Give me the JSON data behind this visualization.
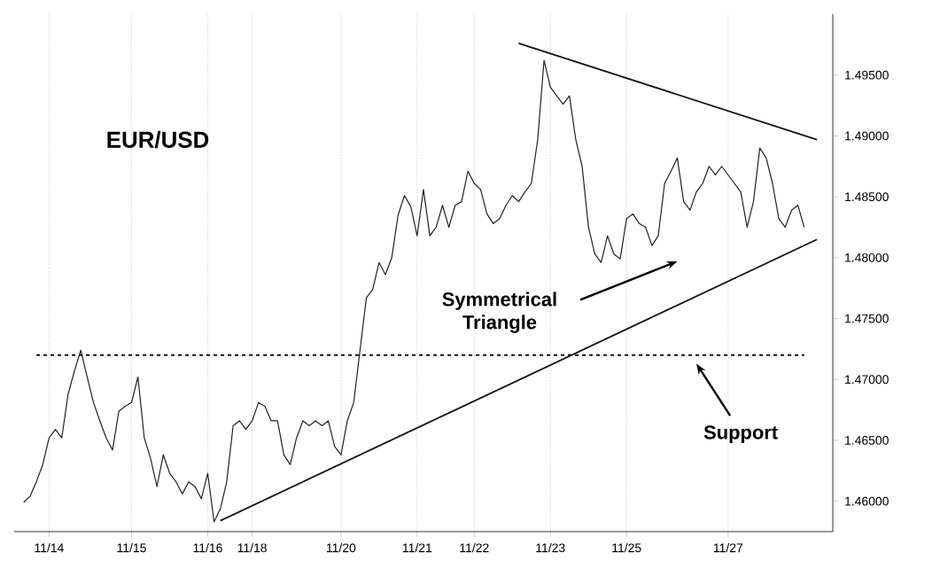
{
  "chart_data": {
    "type": "line",
    "title": "EUR/USD",
    "annotations": [
      "Symmetrical Triangle",
      "Support"
    ],
    "categories": [
      null,
      null,
      null,
      null,
      "11/14",
      null,
      null,
      null,
      null,
      null,
      null,
      null,
      null,
      null,
      null,
      null,
      null,
      "11/15",
      null,
      null,
      null,
      null,
      null,
      null,
      null,
      null,
      null,
      null,
      null,
      "11/16",
      null,
      null,
      null,
      null,
      null,
      null,
      "11/18",
      null,
      null,
      null,
      null,
      null,
      null,
      null,
      null,
      null,
      null,
      null,
      null,
      null,
      "11/20",
      null,
      null,
      null,
      null,
      null,
      null,
      null,
      null,
      null,
      null,
      null,
      "11/21",
      null,
      null,
      null,
      null,
      null,
      null,
      null,
      null,
      "11/22",
      null,
      null,
      null,
      null,
      null,
      null,
      null,
      null,
      null,
      null,
      null,
      "11/23",
      null,
      null,
      null,
      null,
      null,
      null,
      null,
      null,
      null,
      null,
      null,
      "11/25",
      null,
      null,
      null,
      null,
      null,
      null,
      null,
      null,
      null,
      null,
      null,
      null,
      null,
      null,
      null,
      "11/27",
      null,
      null,
      null,
      null,
      null,
      null,
      null,
      null,
      null,
      null,
      null,
      null,
      null,
      null
    ],
    "ylim": [
      1.4575,
      1.5
    ],
    "yticks": [
      {
        "value": 1.46,
        "label": "1.46000"
      },
      {
        "value": 1.465,
        "label": "1.46500"
      },
      {
        "value": 1.47,
        "label": "1.47000"
      },
      {
        "value": 1.475,
        "label": "1.47500"
      },
      {
        "value": 1.48,
        "label": "1.48000"
      },
      {
        "value": 1.485,
        "label": "1.48500"
      },
      {
        "value": 1.49,
        "label": "1.49000"
      },
      {
        "value": 1.495,
        "label": "1.49500"
      }
    ],
    "grid": "x",
    "marker": "none",
    "line_style": "solid",
    "series": [
      {
        "color": "#222222",
        "values": [
          1.4599,
          1.4604,
          1.4616,
          1.463,
          1.4652,
          1.4659,
          1.4652,
          1.4688,
          1.4707,
          1.4724,
          1.4702,
          1.4681,
          1.4666,
          1.4652,
          1.4642,
          1.4674,
          1.4678,
          1.4681,
          1.4702,
          1.4652,
          1.4635,
          1.4612,
          1.4638,
          1.4623,
          1.4616,
          1.4606,
          1.4616,
          1.4612,
          1.4602,
          1.4623,
          1.4583,
          1.4594,
          1.4616,
          1.4662,
          1.4666,
          1.4659,
          1.4666,
          1.4681,
          1.4678,
          1.4666,
          1.4666,
          1.4638,
          1.463,
          1.4652,
          1.4666,
          1.4662,
          1.4666,
          1.4662,
          1.4666,
          1.4645,
          1.4638,
          1.4666,
          1.4681,
          1.4724,
          1.4767,
          1.4774,
          1.4796,
          1.4786,
          1.48,
          1.4835,
          1.4851,
          1.4842,
          1.4818,
          1.4856,
          1.4818,
          1.4825,
          1.4843,
          1.4825,
          1.4843,
          1.4846,
          1.4871,
          1.4861,
          1.4856,
          1.4836,
          1.4828,
          1.4832,
          1.4843,
          1.4851,
          1.4846,
          1.4854,
          1.4861,
          1.4897,
          1.4962,
          1.494,
          1.4933,
          1.4926,
          1.4933,
          1.4897,
          1.4875,
          1.4825,
          1.4803,
          1.4796,
          1.4818,
          1.4803,
          1.4799,
          1.4832,
          1.4836,
          1.4828,
          1.4825,
          1.481,
          1.4818,
          1.4861,
          1.4871,
          1.4882,
          1.4846,
          1.4839,
          1.4854,
          1.4861,
          1.4875,
          1.4868,
          1.4875,
          1.4868,
          1.4861,
          1.4854,
          1.4825,
          1.4846,
          1.489,
          1.4882,
          1.4861,
          1.4832,
          1.4825,
          1.4839,
          1.4843,
          1.4825,
          null,
          null
        ]
      },
      {
        "color": "#111111",
        "values": [
          null,
          null,
          null,
          null,
          null,
          null,
          null,
          null,
          null,
          null,
          null,
          null,
          null,
          null,
          null,
          null,
          null,
          null,
          null,
          null,
          null,
          null,
          null,
          null,
          null,
          null,
          null,
          null,
          null,
          null,
          null,
          null,
          null,
          null,
          null,
          null,
          null,
          null,
          null,
          null,
          null,
          null,
          null,
          null,
          null,
          null,
          null,
          null,
          null,
          null,
          null,
          null,
          null,
          null,
          null,
          null,
          null,
          null,
          null,
          null,
          null,
          null,
          null,
          null,
          null,
          null,
          null,
          null,
          null,
          null,
          null,
          null,
          null,
          null,
          null,
          null,
          null,
          null,
          1.4976,
          null,
          null,
          null,
          null,
          null,
          null,
          null,
          null,
          null,
          null,
          null,
          null,
          null,
          null,
          null,
          null,
          null,
          null,
          null,
          null,
          null,
          null,
          null,
          null,
          null,
          null,
          null,
          null,
          null,
          null,
          null,
          null,
          null,
          null,
          null,
          null,
          null,
          null,
          null,
          null,
          null,
          null,
          null,
          null,
          null,
          null,
          1.4897
        ]
      },
      {
        "color": "#111111",
        "values": [
          null,
          null,
          null,
          null,
          null,
          null,
          null,
          null,
          null,
          null,
          null,
          null,
          null,
          null,
          null,
          null,
          null,
          null,
          null,
          null,
          null,
          null,
          null,
          null,
          null,
          null,
          null,
          null,
          null,
          null,
          null,
          1.4584,
          null,
          null,
          null,
          null,
          null,
          null,
          null,
          null,
          null,
          null,
          null,
          null,
          null,
          null,
          null,
          null,
          null,
          null,
          null,
          null,
          null,
          null,
          null,
          null,
          null,
          null,
          null,
          null,
          null,
          null,
          null,
          null,
          null,
          null,
          null,
          null,
          null,
          null,
          null,
          null,
          null,
          null,
          null,
          null,
          null,
          null,
          null,
          null,
          null,
          null,
          null,
          null,
          null,
          null,
          null,
          null,
          null,
          null,
          null,
          null,
          null,
          null,
          null,
          null,
          null,
          null,
          null,
          null,
          null,
          null,
          null,
          null,
          null,
          null,
          null,
          null,
          null,
          null,
          null,
          null,
          null,
          null,
          null,
          null,
          null,
          null,
          null,
          null,
          null,
          null,
          null,
          null,
          null,
          1.4815
        ]
      }
    ],
    "ref_lines": [
      {
        "axis": "y",
        "value": 1.472,
        "line_style": "dashed",
        "color": "#111111"
      }
    ]
  }
}
